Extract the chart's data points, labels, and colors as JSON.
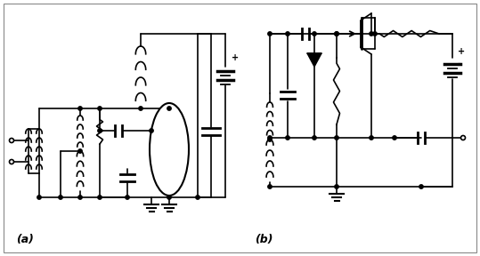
{
  "label_a": "(a)",
  "label_b": "(b)",
  "bg": "#ffffff",
  "lc": "#000000",
  "gc": "#999999",
  "fw": 5.39,
  "fh": 2.88,
  "dpi": 100
}
